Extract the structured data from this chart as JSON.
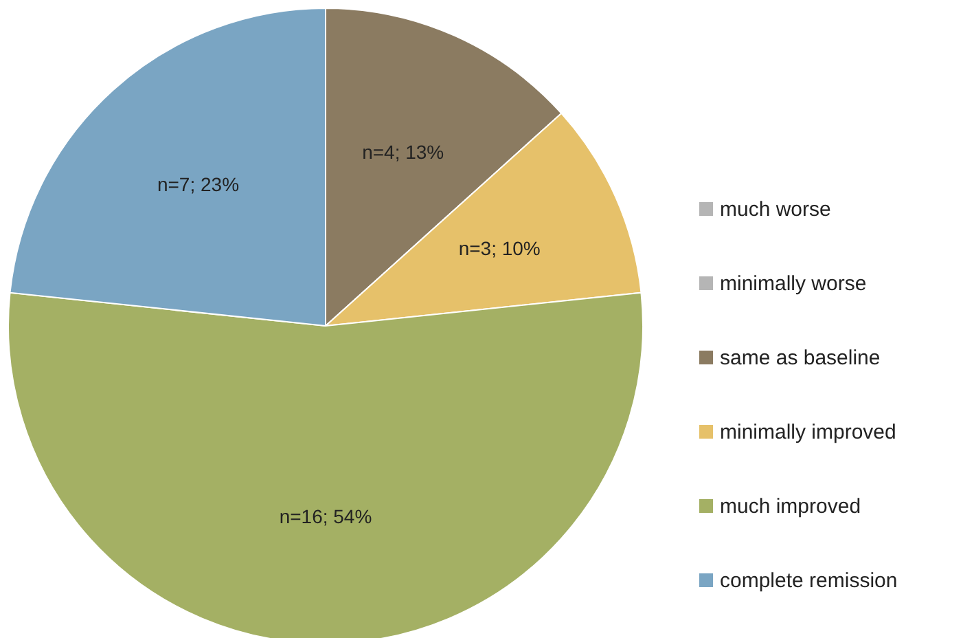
{
  "chart_data": {
    "type": "pie",
    "categories": [
      "much worse",
      "minimally worse",
      "same as baseline",
      "minimally improved",
      "much improved",
      "complete remission"
    ],
    "values": [
      0,
      0,
      4,
      3,
      16,
      7
    ],
    "colors": [
      "#b5b5b5",
      "#b5b5b5",
      "#8b7b61",
      "#e6c16a",
      "#a4b064",
      "#7aa5c3"
    ],
    "value_labels": [
      null,
      null,
      "n=4; 13%",
      "n=3; 10%",
      "n=16; 54%",
      "n=7; 23%"
    ],
    "legend": "right"
  }
}
